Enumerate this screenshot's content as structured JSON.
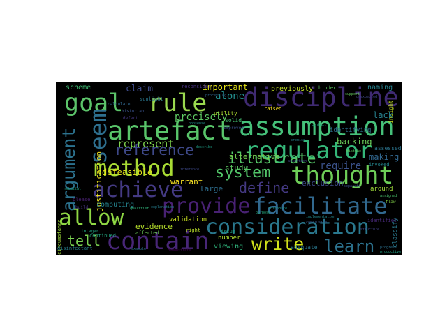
{
  "words": [
    {
      "text": "discipline",
      "color": "#3f2a72"
    },
    {
      "text": "goal",
      "color": "#5cc46a"
    },
    {
      "text": "rule",
      "color": "#9ad94f"
    },
    {
      "text": "assumption",
      "color": "#46c17a"
    },
    {
      "text": "artefact",
      "color": "#59c56a"
    },
    {
      "text": "regulator",
      "color": "#35b779"
    },
    {
      "text": "method",
      "color": "#a8db34"
    },
    {
      "text": "thought",
      "color": "#6ece58"
    },
    {
      "text": "system",
      "color": "#52c569"
    },
    {
      "text": "achieve",
      "color": "#443a83"
    },
    {
      "text": "provide",
      "color": "#482173"
    },
    {
      "text": "facilitate",
      "color": "#31688e"
    },
    {
      "text": "allow",
      "color": "#8fd744"
    },
    {
      "text": "consideration",
      "color": "#2a788e"
    },
    {
      "text": "contain",
      "color": "#482677"
    },
    {
      "text": "write",
      "color": "#d2e21b"
    },
    {
      "text": "learn",
      "color": "#2c728e"
    },
    {
      "text": "tell",
      "color": "#7ad151"
    },
    {
      "text": "seem",
      "color": "#2e6f8e"
    },
    {
      "text": "argument",
      "color": "#2c728e"
    },
    {
      "text": "reference",
      "color": "#3e4989"
    },
    {
      "text": "illustrate",
      "color": "#55c667"
    },
    {
      "text": "define",
      "color": "#443983"
    },
    {
      "text": "require",
      "color": "#3b528b"
    },
    {
      "text": "claim",
      "color": "#3e4c8a"
    },
    {
      "text": "represent",
      "color": "#7fd34e"
    },
    {
      "text": "precisely",
      "color": "#5ec962"
    },
    {
      "text": "important",
      "color": "#e5e419"
    },
    {
      "text": "alone",
      "color": "#228d8d"
    },
    {
      "text": "previously",
      "color": "#c0df25"
    },
    {
      "text": "naming",
      "color": "#26828e"
    },
    {
      "text": "scheme",
      "color": "#3fbc73"
    },
    {
      "text": "justification",
      "color": "#f1e51d"
    },
    {
      "text": "defeasible",
      "color": "#e7e419"
    },
    {
      "text": "alternative",
      "color": "#7ad151"
    },
    {
      "text": "backing",
      "color": "#6ccd5a"
    },
    {
      "text": "study",
      "color": "#5ec962"
    },
    {
      "text": "warrant",
      "color": "#fde725"
    },
    {
      "text": "large",
      "color": "#2e6e8e"
    },
    {
      "text": "exclusion",
      "color": "#3e4a89"
    },
    {
      "text": "computing",
      "color": "#25838e"
    },
    {
      "text": "evidence",
      "color": "#b5de2b"
    },
    {
      "text": "validation",
      "color": "#c8e020"
    },
    {
      "text": "number",
      "color": "#b0dd2f"
    },
    {
      "text": "viewing",
      "color": "#2fb47c"
    },
    {
      "text": "making",
      "color": "#31668e"
    },
    {
      "text": "assessed",
      "color": "#2b748e"
    },
    {
      "text": "lack",
      "color": "#26818e"
    },
    {
      "text": "around",
      "color": "#9fda3a"
    },
    {
      "text": "identifies",
      "color": "#482979"
    },
    {
      "text": "classify",
      "color": "#29798e"
    },
    {
      "text": "identifying",
      "color": "#2d708e"
    },
    {
      "text": "solid",
      "color": "#44bf70"
    },
    {
      "text": "utility",
      "color": "#addc30"
    },
    {
      "text": "disinfectant",
      "color": "#277f8e"
    },
    {
      "text": "sunlight",
      "color": "#2a778e"
    },
    {
      "text": "reconsider",
      "color": "#46307e"
    },
    {
      "text": "raised",
      "color": "#fde725"
    },
    {
      "text": "hinder",
      "color": "#5ec962"
    },
    {
      "text": "insight",
      "color": "#c2df23"
    },
    {
      "text": "invoked",
      "color": "#24868e"
    },
    {
      "text": "circumstance",
      "color": "#a0da39"
    },
    {
      "text": "right",
      "color": "#b8de29"
    },
    {
      "text": "please",
      "color": "#482071"
    },
    {
      "text": "continued",
      "color": "#24aa83"
    },
    {
      "text": "affected",
      "color": "#6ece58"
    },
    {
      "text": "issue",
      "color": "#20a386"
    },
    {
      "text": "historian",
      "color": "#3b528b"
    },
    {
      "text": "calculate",
      "color": "#31688e"
    },
    {
      "text": "build",
      "color": "#46327e"
    },
    {
      "text": "integer",
      "color": "#22a884"
    },
    {
      "text": "improved",
      "color": "#3b528b"
    },
    {
      "text": "adequate",
      "color": "#2a788e"
    },
    {
      "text": "implementation",
      "color": "#23898e"
    },
    {
      "text": "assertion",
      "color": "#3f4889"
    },
    {
      "text": "flaw",
      "color": "#85d54a"
    },
    {
      "text": "assigned",
      "color": "#4ac16d"
    },
    {
      "text": "progress",
      "color": "#2c728e"
    },
    {
      "text": "productive",
      "color": "#20a386"
    },
    {
      "text": "processing",
      "color": "#32658e"
    },
    {
      "text": "unexpected",
      "color": "#3f4788"
    },
    {
      "text": "nonsense",
      "color": "#21918c"
    },
    {
      "text": "demonstrate",
      "color": "#440154"
    },
    {
      "text": "distinguish",
      "color": "#2a768e"
    },
    {
      "text": "introduce",
      "color": "#1f988b"
    },
    {
      "text": "mistake",
      "color": "#5cc863"
    },
    {
      "text": "explanation",
      "color": "#277e8e"
    },
    {
      "text": "separate",
      "color": "#3c4f8a"
    },
    {
      "text": "conclusion",
      "color": "#38588c"
    },
    {
      "text": "rebuttal",
      "color": "#22a785"
    },
    {
      "text": "qualifier",
      "color": "#31b57b"
    },
    {
      "text": "premise",
      "color": "#287d8e"
    },
    {
      "text": "inference",
      "color": "#3e4989"
    },
    {
      "text": "support",
      "color": "#65cb5e"
    },
    {
      "text": "defect",
      "color": "#453781"
    },
    {
      "text": "context",
      "color": "#23a983"
    },
    {
      "text": "example",
      "color": "#2d718e"
    },
    {
      "text": "describe",
      "color": "#1fa088"
    },
    {
      "text": "structure",
      "color": "#414487"
    },
    {
      "text": "purpose",
      "color": "#27ad81"
    }
  ]
}
